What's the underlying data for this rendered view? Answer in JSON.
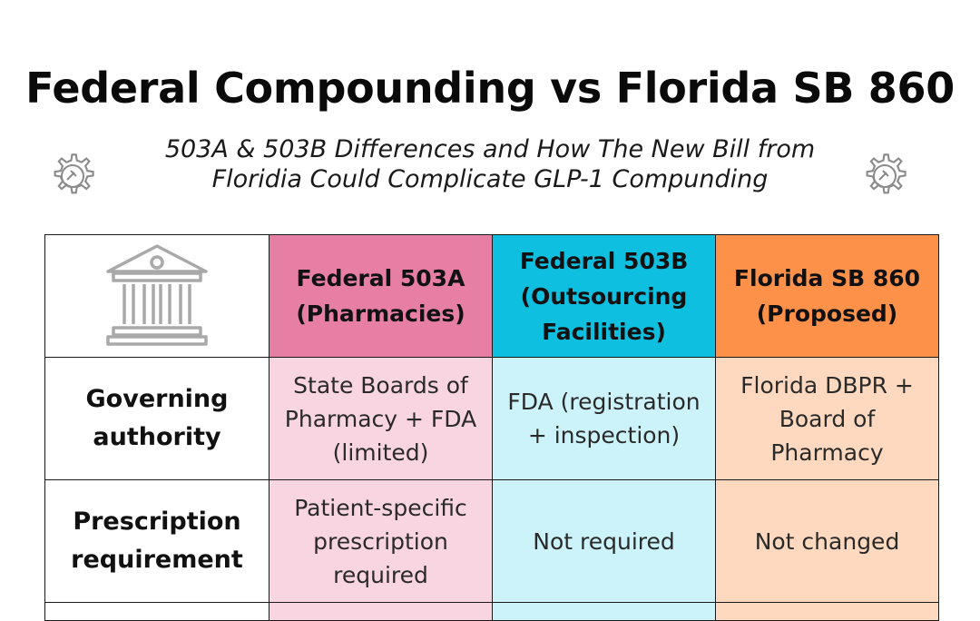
{
  "header": {
    "title": "Federal Compounding vs Florida SB 860",
    "subtitle_line1": "503A & 503B Differences and How The New Bill from",
    "subtitle_line2": "Floridia Could Complicate GLP-1 Compunding"
  },
  "icons": {
    "gear_left": "gear-gavel-icon",
    "gear_right": "gear-gavel-icon",
    "corner": "government-building-icon"
  },
  "colors": {
    "503a_header": "#e77fa5",
    "503b_header": "#0fbfe0",
    "florida_header": "#fe914a",
    "503a_cell": "#f9d5e2",
    "503b_cell": "#cdf3fa",
    "florida_cell": "#fed9c0"
  },
  "table": {
    "columns": [
      {
        "line1": "Federal 503A",
        "line2": "(Pharmacies)"
      },
      {
        "line1": "Federal 503B",
        "line2": "(Outsourcing",
        "line3": "Facilities)"
      },
      {
        "line1": "Florida SB 860",
        "line2": "(Proposed)"
      }
    ],
    "rows": [
      {
        "label_line1": "Governing",
        "label_line2": "authority",
        "cells": [
          {
            "lines": [
              "State Boards of",
              "Pharmacy + FDA",
              "(limited)"
            ]
          },
          {
            "lines": [
              "FDA (registration",
              "+ inspection)"
            ]
          },
          {
            "lines": [
              "Florida DBPR +",
              "Board of",
              "Pharmacy"
            ]
          }
        ]
      },
      {
        "label_line1": "Prescription",
        "label_line2": "requirement",
        "cells": [
          {
            "lines": [
              "Patient-specific",
              "prescription",
              "required"
            ]
          },
          {
            "lines": [
              "Not required"
            ]
          },
          {
            "lines": [
              "Not changed"
            ]
          }
        ]
      }
    ]
  }
}
